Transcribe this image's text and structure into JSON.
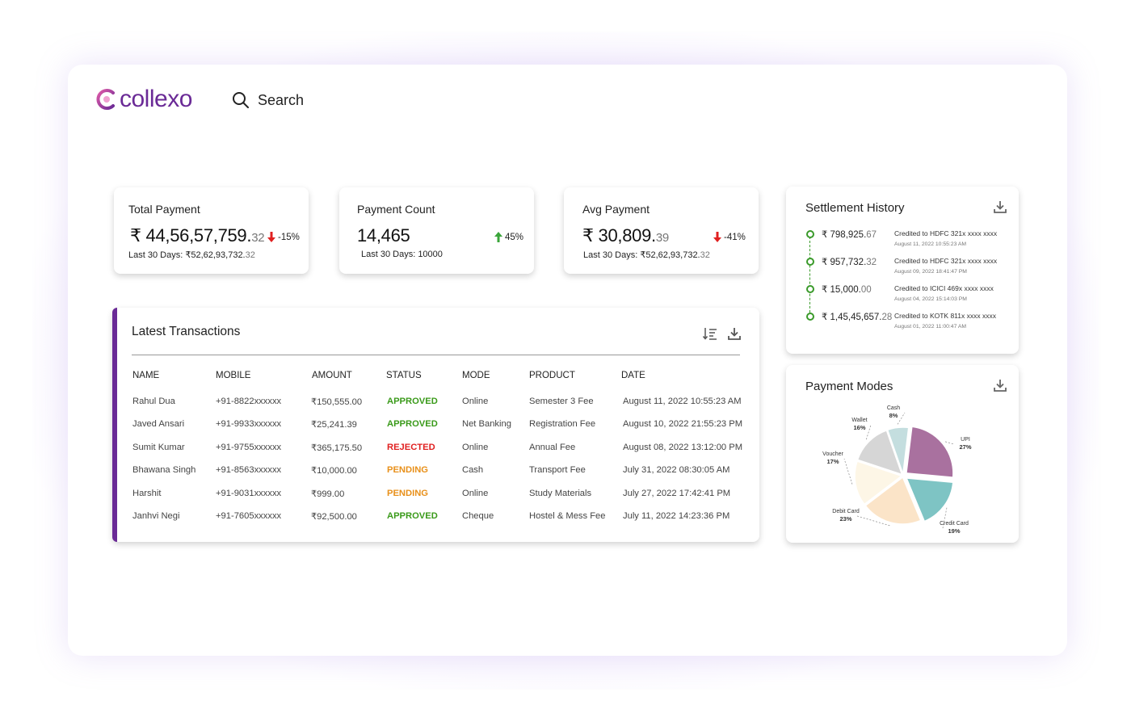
{
  "brand": {
    "name": "collexo"
  },
  "search": {
    "label": "Search"
  },
  "stats": [
    {
      "title": "Total Payment",
      "currency": "₹",
      "value_int": "44,56,57,759.",
      "value_dec": "32",
      "trend_dir": "down",
      "trend": "-15%",
      "sub_label": "Last 30 Days:",
      "sub_currency": "₹",
      "sub_int": "52,62,93,732.",
      "sub_dec": "32"
    },
    {
      "title": "Payment Count",
      "currency": "",
      "value_int": "14,465",
      "value_dec": "",
      "trend_dir": "up",
      "trend": "45%",
      "sub_label": "Last 30 Days: 10000",
      "sub_currency": "",
      "sub_int": "",
      "sub_dec": ""
    },
    {
      "title": "Avg Payment",
      "currency": "₹",
      "value_int": "30,809.",
      "value_dec": "39",
      "trend_dir": "down",
      "trend": "-41%",
      "sub_label": "Last 30 Days:",
      "sub_currency": "₹",
      "sub_int": "52,62,93,732.",
      "sub_dec": "32"
    }
  ],
  "transactions": {
    "title": "Latest Transactions",
    "columns": [
      "NAME",
      "MOBILE",
      "AMOUNT",
      "STATUS",
      "MODE",
      "PRODUCT",
      "DATE"
    ],
    "rows": [
      {
        "name": "Rahul Dua",
        "mobile": "+91-8822xxxxxx",
        "amount": "₹150,555.00",
        "status": "APPROVED",
        "mode": "Online",
        "product": "Semester 3 Fee",
        "date": "August 11, 2022 10:55:23 AM"
      },
      {
        "name": "Javed Ansari",
        "mobile": "+91-9933xxxxxx",
        "amount": "₹25,241.39",
        "status": "APPROVED",
        "mode": "Net Banking",
        "product": "Registration Fee",
        "date": "August 10, 2022 21:55:23 PM"
      },
      {
        "name": "Sumit Kumar",
        "mobile": "+91-9755xxxxxx",
        "amount": "₹365,175.50",
        "status": "REJECTED",
        "mode": "Online",
        "product": "Annual Fee",
        "date": "August 08, 2022 13:12:00 PM"
      },
      {
        "name": "Bhawana Singh",
        "mobile": "+91-8563xxxxxx",
        "amount": "₹10,000.00",
        "status": "PENDING",
        "mode": "Cash",
        "product": "Transport Fee",
        "date": "July 31, 2022 08:30:05 AM"
      },
      {
        "name": "Harshit",
        "mobile": "+91-9031xxxxxx",
        "amount": "₹999.00",
        "status": "PENDING",
        "mode": "Online",
        "product": "Study Materials",
        "date": "July 27, 2022 17:42:41 PM"
      },
      {
        "name": "Janhvi Negi",
        "mobile": "+91-7605xxxxxx",
        "amount": "₹92,500.00",
        "status": "APPROVED",
        "mode": "Cheque",
        "product": "Hostel & Mess Fee",
        "date": "July 11, 2022 14:23:36 PM"
      }
    ],
    "status_colors": {
      "APPROVED": "#3a9a1a",
      "REJECTED": "#e02020",
      "PENDING": "#e8901a"
    }
  },
  "settlement": {
    "title": "Settlement History",
    "items": [
      {
        "amount_int": "₹ 798,925.",
        "amount_dec": "67",
        "desc": "Credited to HDFC 321x xxxx xxxx",
        "date": "August 11, 2022 10:55:23 AM"
      },
      {
        "amount_int": "₹ 957,732.",
        "amount_dec": "32",
        "desc": "Credited to HDFC 321x xxxx xxxx",
        "date": "August 09, 2022 18:41:47 PM"
      },
      {
        "amount_int": "₹ 15,000.",
        "amount_dec": "00",
        "desc": "Credited to ICICI 469x xxxx xxxx",
        "date": "August 04, 2022 15:14:03 PM"
      },
      {
        "amount_int": "₹ 1,45,45,657.",
        "amount_dec": "28",
        "desc": "Credited to KOTK 811x xxxx xxxx",
        "date": "August 01, 2022 11:00:47 AM"
      }
    ]
  },
  "payment_modes": {
    "title": "Payment Modes"
  },
  "chart_data": {
    "type": "pie",
    "categories": [
      "UPI",
      "Credit Card",
      "Debit Card",
      "Voucher",
      "Wallet",
      "Cash"
    ],
    "values": [
      27,
      19,
      23,
      17,
      16,
      8
    ],
    "labels": [
      "27%",
      "19%",
      "23%",
      "17%",
      "16%",
      "8%"
    ],
    "colors": [
      "#a9719f",
      "#7ec4c4",
      "#fbe4c8",
      "#fdf6e6",
      "#d6d6d6",
      "#c4dedf"
    ]
  },
  "colors": {
    "accent": "#6a2a96",
    "up": "#3aa53a",
    "down": "#e02020",
    "timeline": "#3a9a2a"
  }
}
